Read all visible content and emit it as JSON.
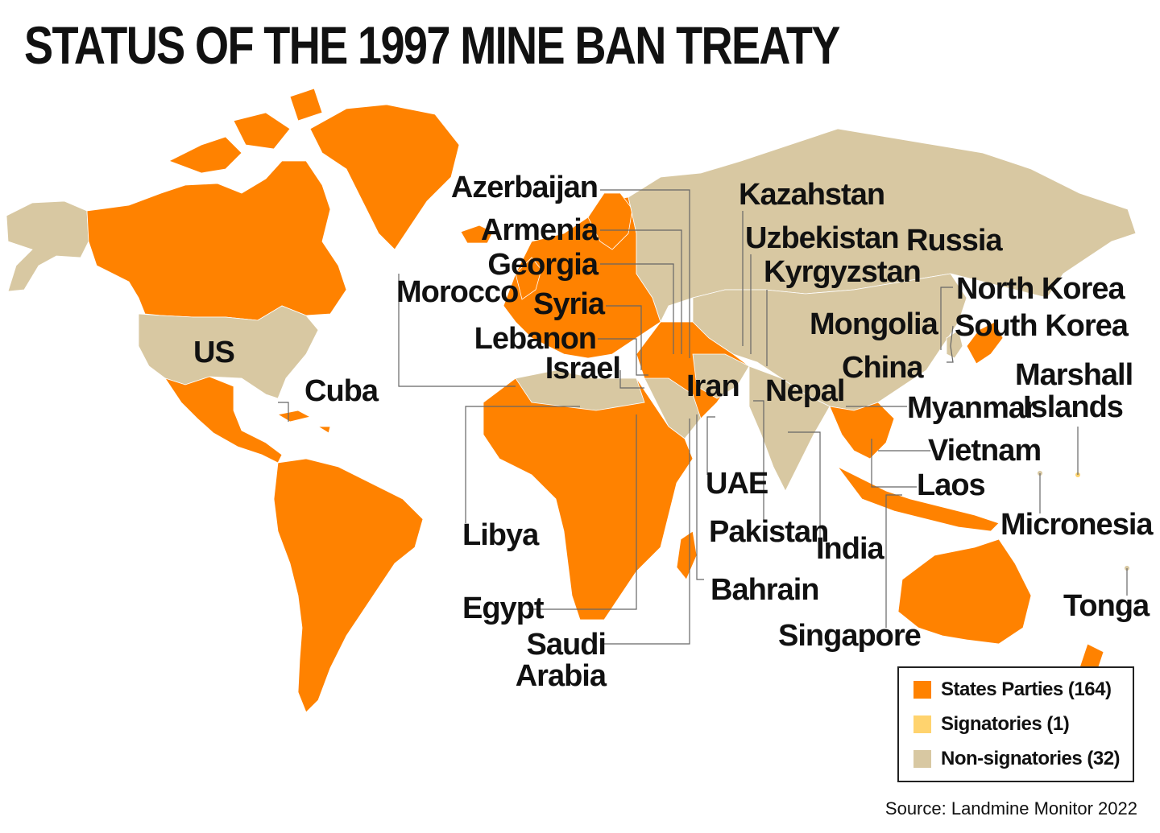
{
  "title": "STATUS OF THE 1997 MINE BAN TREATY",
  "colors": {
    "states_parties": "#ff8200",
    "signatories": "#ffd36e",
    "non_signatories": "#d8c8a2",
    "leader_lines": "#666666"
  },
  "labels": {
    "azerbaijan": "Azerbaijan",
    "armenia": "Armenia",
    "georgia": "Georgia",
    "syria": "Syria",
    "lebanon": "Lebanon",
    "israel": "Israel",
    "morocco": "Morocco",
    "us": "US",
    "cuba": "Cuba",
    "kazakhstan": "Kazahstan",
    "uzbekistan": "Uzbekistan",
    "kyrgyzstan": "Kyrgyzstan",
    "russia": "Russia",
    "mongolia": "Mongolia",
    "china": "China",
    "north_korea": "North Korea",
    "south_korea": "South Korea",
    "iran": "Iran",
    "nepal": "Nepal",
    "myanmar": "Myanmar",
    "marshall_islands_1": "Marshall",
    "marshall_islands_2": "Islands",
    "vietnam": "Vietnam",
    "laos": "Laos",
    "uae": "UAE",
    "libya": "Libya",
    "pakistan": "Pakistan",
    "india": "India",
    "micronesia": "Micronesia",
    "bahrain": "Bahrain",
    "egypt": "Egypt",
    "tonga": "Tonga",
    "saudi_arabia_1": "Saudi",
    "saudi_arabia_2": "Arabia",
    "singapore": "Singapore"
  },
  "legend": {
    "items": [
      {
        "label": "States Parties (164)",
        "color": "#ff8200"
      },
      {
        "label": "Signatories (1)",
        "color": "#ffd36e"
      },
      {
        "label": "Non-signatories (32)",
        "color": "#d8c8a2"
      }
    ]
  },
  "source": "Source: Landmine Monitor 2022"
}
